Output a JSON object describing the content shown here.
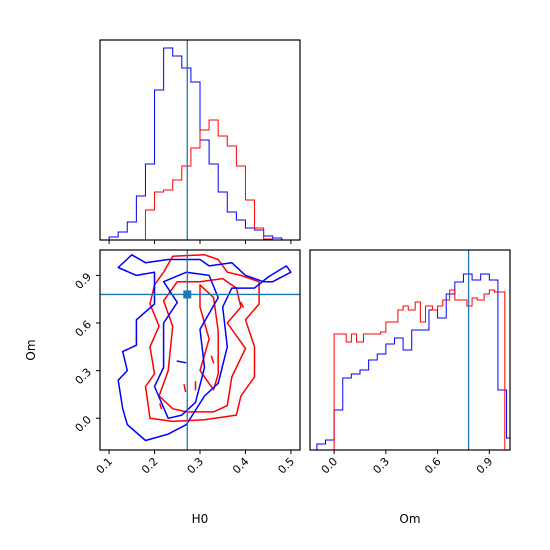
{
  "chart_data": [
    {
      "panel": "H0 marginal",
      "type": "histogram",
      "xlim": [
        0.08,
        0.52
      ],
      "truth": 0.272,
      "series": [
        {
          "color": "#0000ff",
          "bin_edges": [
            0.1,
            0.12,
            0.14,
            0.16,
            0.18,
            0.2,
            0.22,
            0.24,
            0.26,
            0.28,
            0.3,
            0.32,
            0.34,
            0.36,
            0.38,
            0.4,
            0.42,
            0.44,
            0.46,
            0.48,
            0.5
          ],
          "heights": [
            0.015,
            0.04,
            0.09,
            0.22,
            0.38,
            0.75,
            0.96,
            0.92,
            0.86,
            0.79,
            0.5,
            0.38,
            0.24,
            0.14,
            0.1,
            0.06,
            0.05,
            0.02,
            0.01,
            0.0
          ]
        },
        {
          "color": "#ff0000",
          "bin_edges": [
            0.1,
            0.12,
            0.14,
            0.16,
            0.18,
            0.2,
            0.22,
            0.24,
            0.26,
            0.28,
            0.3,
            0.32,
            0.34,
            0.36,
            0.38,
            0.4,
            0.42,
            0.44,
            0.46,
            0.48,
            0.5
          ],
          "heights": [
            0,
            0,
            0,
            0,
            0.15,
            0.24,
            0.25,
            0.3,
            0.37,
            0.46,
            0.55,
            0.6,
            0.52,
            0.47,
            0.37,
            0.2,
            0.06,
            0.005,
            0,
            0
          ]
        }
      ]
    },
    {
      "panel": "Om marginal",
      "type": "histogram",
      "xlim": [
        -0.14,
        1.02
      ],
      "truth": 0.78,
      "series": [
        {
          "color": "#0000ff",
          "bin_edges": [
            -0.1,
            -0.05,
            0.0,
            0.05,
            0.1,
            0.15,
            0.2,
            0.25,
            0.3,
            0.35,
            0.4,
            0.45,
            0.5,
            0.55,
            0.6,
            0.65,
            0.7,
            0.75,
            0.8,
            0.85,
            0.9,
            0.95,
            1.0
          ],
          "heights": [
            0.03,
            0.05,
            0.2,
            0.36,
            0.38,
            0.4,
            0.45,
            0.48,
            0.53,
            0.56,
            0.5,
            0.6,
            0.6,
            0.7,
            0.66,
            0.78,
            0.84,
            0.88,
            0.85,
            0.88,
            0.85,
            0.3
          ],
          "tail": {
            "edge": 1.02,
            "height": 0.06
          }
        },
        {
          "color": "#ff0000",
          "bin_edges": [
            0.0,
            0.03,
            0.07,
            0.1,
            0.13,
            0.17,
            0.2,
            0.23,
            0.27,
            0.3,
            0.33,
            0.37,
            0.4,
            0.43,
            0.47,
            0.5,
            0.53,
            0.57,
            0.6,
            0.63,
            0.67,
            0.7,
            0.73,
            0.77,
            0.8,
            0.83,
            0.87,
            0.9,
            0.93,
            0.97,
            0.99
          ],
          "heights": [
            0.58,
            0.58,
            0.54,
            0.58,
            0.54,
            0.58,
            0.58,
            0.58,
            0.59,
            0.64,
            0.64,
            0.7,
            0.72,
            0.7,
            0.74,
            0.64,
            0.72,
            0.7,
            0.72,
            0.75,
            0.8,
            0.75,
            0.75,
            0.72,
            0.76,
            0.75,
            0.78,
            0.8,
            0.79,
            0.79
          ]
        }
      ]
    },
    {
      "panel": "H0 vs Om joint",
      "type": "contour",
      "xlim": [
        0.08,
        0.52
      ],
      "ylim": [
        -0.2,
        1.06
      ],
      "truth": {
        "H0": 0.272,
        "Om": 0.78
      },
      "series": [
        {
          "color": "#0000ff",
          "contours": [
            [
              [
                0.2,
                0.92
              ],
              [
                0.2,
                0.72
              ],
              [
                0.16,
                0.62
              ],
              [
                0.16,
                0.46
              ],
              [
                0.13,
                0.42
              ],
              [
                0.14,
                0.3
              ],
              [
                0.12,
                0.24
              ],
              [
                0.13,
                0.06
              ],
              [
                0.14,
                -0.04
              ],
              [
                0.18,
                -0.14
              ],
              [
                0.23,
                -0.1
              ],
              [
                0.27,
                -0.04
              ],
              [
                0.31,
                0.14
              ],
              [
                0.34,
                0.22
              ],
              [
                0.36,
                0.45
              ],
              [
                0.35,
                0.7
              ],
              [
                0.37,
                0.82
              ],
              [
                0.42,
                0.82
              ],
              [
                0.45,
                0.89
              ],
              [
                0.49,
                0.96
              ],
              [
                0.5,
                0.92
              ],
              [
                0.46,
                0.86
              ],
              [
                0.44,
                0.86
              ],
              [
                0.4,
                0.9
              ],
              [
                0.37,
                0.98
              ],
              [
                0.32,
                0.96
              ],
              [
                0.3,
                1.0
              ],
              [
                0.23,
                1.0
              ],
              [
                0.18,
                0.98
              ],
              [
                0.15,
                1.03
              ],
              [
                0.12,
                0.95
              ],
              [
                0.16,
                0.9
              ],
              [
                0.2,
                0.92
              ]
            ],
            [
              [
                0.22,
                0.86
              ],
              [
                0.25,
                0.73
              ],
              [
                0.22,
                0.6
              ],
              [
                0.22,
                0.32
              ],
              [
                0.2,
                0.2
              ],
              [
                0.23,
                0.0
              ],
              [
                0.26,
                0.02
              ],
              [
                0.29,
                0.1
              ],
              [
                0.31,
                0.32
              ],
              [
                0.3,
                0.56
              ],
              [
                0.34,
                0.76
              ],
              [
                0.32,
                0.9
              ],
              [
                0.27,
                0.92
              ],
              [
                0.22,
                0.86
              ]
            ],
            [
              [
                0.25,
                0.36
              ],
              [
                0.268,
                0.35
              ]
            ]
          ]
        },
        {
          "color": "#ff0000",
          "contours": [
            [
              [
                0.22,
                0.92
              ],
              [
                0.2,
                0.84
              ],
              [
                0.19,
                0.72
              ],
              [
                0.21,
                0.58
              ],
              [
                0.19,
                0.45
              ],
              [
                0.2,
                0.28
              ],
              [
                0.18,
                0.2
              ],
              [
                0.19,
                0.0
              ],
              [
                0.24,
                -0.02
              ],
              [
                0.31,
                -0.01
              ],
              [
                0.38,
                0.02
              ],
              [
                0.39,
                0.14
              ],
              [
                0.42,
                0.26
              ],
              [
                0.42,
                0.45
              ],
              [
                0.4,
                0.62
              ],
              [
                0.43,
                0.72
              ],
              [
                0.43,
                0.86
              ],
              [
                0.39,
                0.9
              ],
              [
                0.36,
                0.92
              ],
              [
                0.34,
                1.0
              ],
              [
                0.31,
                1.03
              ],
              [
                0.24,
                1.02
              ],
              [
                0.22,
                0.92
              ]
            ],
            [
              [
                0.25,
                0.86
              ],
              [
                0.22,
                0.74
              ],
              [
                0.24,
                0.58
              ],
              [
                0.23,
                0.3
              ],
              [
                0.21,
                0.14
              ],
              [
                0.24,
                0.06
              ],
              [
                0.27,
                0.04
              ],
              [
                0.33,
                0.04
              ],
              [
                0.36,
                0.08
              ],
              [
                0.37,
                0.26
              ],
              [
                0.4,
                0.44
              ],
              [
                0.36,
                0.6
              ],
              [
                0.39,
                0.7
              ],
              [
                0.38,
                0.82
              ],
              [
                0.35,
                0.88
              ],
              [
                0.3,
                0.86
              ],
              [
                0.25,
                0.86
              ]
            ],
            [
              [
                0.3,
                0.84
              ],
              [
                0.3,
                0.7
              ],
              [
                0.32,
                0.5
              ],
              [
                0.3,
                0.3
              ],
              [
                0.33,
                0.18
              ],
              [
                0.34,
                0.28
              ],
              [
                0.34,
                0.55
              ],
              [
                0.33,
                0.76
              ],
              [
                0.3,
                0.84
              ]
            ],
            [
              [
                0.265,
                0.21
              ],
              [
                0.268,
                0.17
              ]
            ],
            [
              [
                0.212,
                0.09
              ],
              [
                0.215,
                0.06
              ]
            ],
            [
              [
                0.29,
                0.23
              ],
              [
                0.29,
                0.18
              ]
            ],
            [
              [
                0.325,
                0.39
              ],
              [
                0.33,
                0.35
              ]
            ],
            [
              [
                0.39,
                0.73
              ],
              [
                0.395,
                0.7
              ]
            ]
          ]
        }
      ]
    }
  ],
  "axes": {
    "h0_label": "H0",
    "om_label": "Om",
    "h0_ticks": [
      "0.1",
      "0.2",
      "0.3",
      "0.4",
      "0.5"
    ],
    "om_ticks": [
      "0.0",
      "0.3",
      "0.6",
      "0.9"
    ]
  },
  "colors": {
    "blue": "#0000ff",
    "red": "#ff0000",
    "truth": "#1f77b4"
  }
}
